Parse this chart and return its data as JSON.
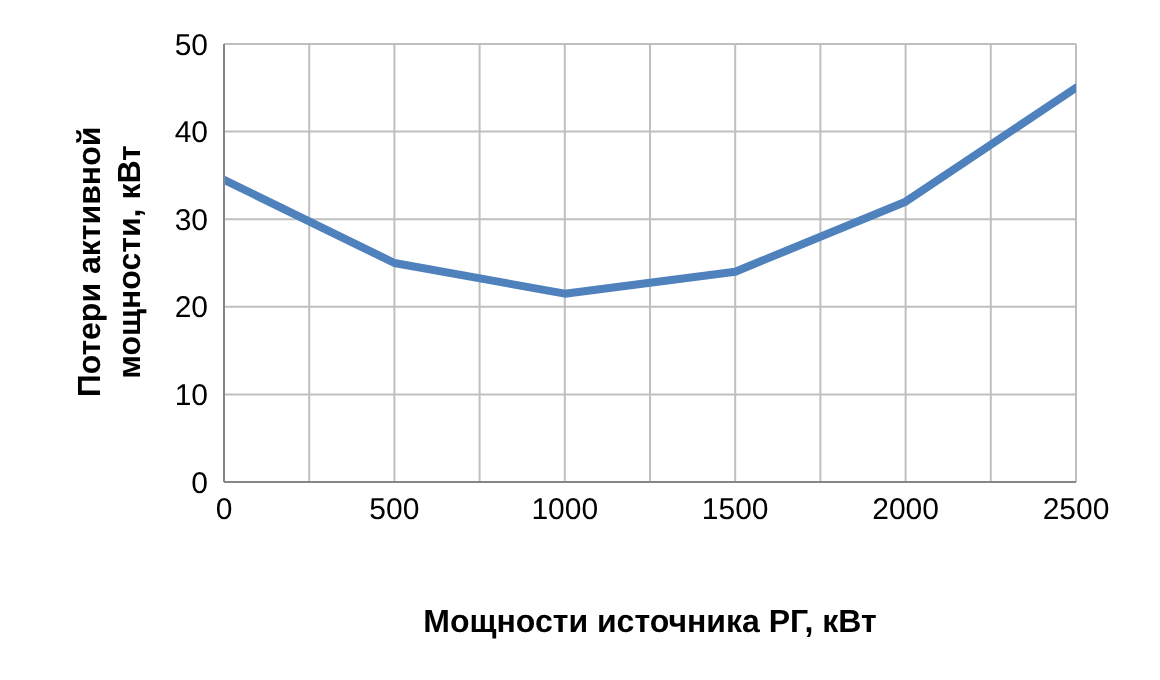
{
  "chart_data": {
    "type": "line",
    "xlabel": "Мощности источника РГ, кВт",
    "ylabel": "Потери активной мощности, кВт",
    "x": [
      0,
      500,
      1000,
      1500,
      2000,
      2500
    ],
    "series": [
      {
        "color": "#4f81bd",
        "values": [
          34.5,
          25,
          21.5,
          24,
          32,
          45
        ]
      }
    ],
    "xlim": [
      0,
      2500
    ],
    "xticks": [
      0,
      {
        "value": 250,
        "label": null
      },
      500,
      {
        "value": 750,
        "label": null
      },
      1000,
      {
        "value": 1250,
        "label": null
      },
      1500,
      {
        "value": 1750,
        "label": null
      },
      2000,
      {
        "value": 2250,
        "label": null
      },
      2500
    ],
    "ylim": [
      0,
      50
    ],
    "yticks": [
      0,
      10,
      20,
      30,
      40,
      50
    ],
    "grid": true,
    "legend": false,
    "marker": "none",
    "line_style": "solid"
  }
}
